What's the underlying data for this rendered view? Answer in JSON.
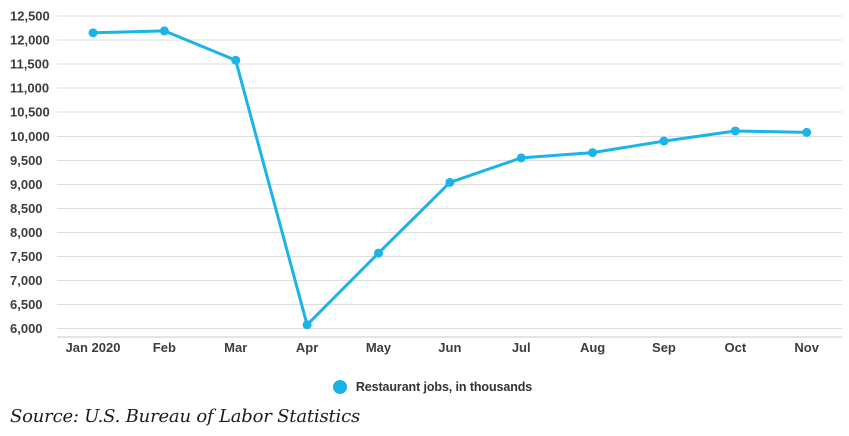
{
  "chart_data": {
    "type": "line",
    "categories": [
      "Jan 2020",
      "Feb",
      "Mar",
      "Apr",
      "May",
      "Jun",
      "Jul",
      "Aug",
      "Sep",
      "Oct",
      "Nov"
    ],
    "series": [
      {
        "name": "Restaurant jobs, in thousands",
        "values": [
          12150,
          12190,
          11580,
          6080,
          7570,
          9040,
          9550,
          9660,
          9900,
          10110,
          10080
        ]
      }
    ],
    "title": "",
    "xlabel": "",
    "ylabel": "",
    "ylim": [
      5820,
      12700
    ],
    "yticks": [
      6000,
      6500,
      7000,
      7500,
      8000,
      8500,
      9000,
      9500,
      10000,
      10500,
      11000,
      11500,
      12000,
      12500
    ],
    "grid": "horizontal",
    "legend_position": "bottom-center"
  },
  "legend": {
    "label": "Restaurant jobs, in thousands"
  },
  "source": {
    "text": "Source: U.S. Bureau of Labor Statistics"
  },
  "colors": {
    "line": "#1cb3e8",
    "grid": "#dddddd",
    "axis_line": "#c9c9c9",
    "tick_label": "#3d3d3d"
  }
}
